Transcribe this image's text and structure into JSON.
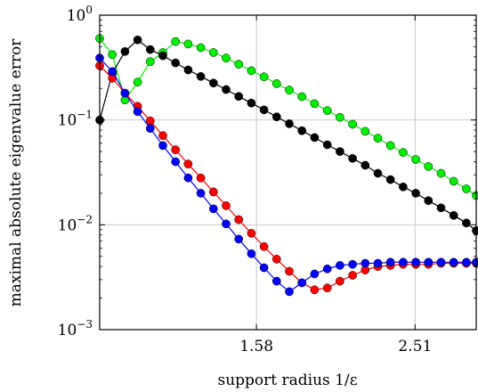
{
  "chart_data": {
    "type": "line",
    "title": "",
    "xlabel": "support radius 1/ε",
    "ylabel": "maximal absolute eigenvalue error",
    "xscale": "log",
    "yscale": "log",
    "xlim": [
      1.0,
      3.0
    ],
    "ylim": [
      0.001,
      1
    ],
    "grid": true,
    "legend": "none",
    "xticks": [
      {
        "value": 1.58,
        "label": "1.58"
      },
      {
        "value": 2.51,
        "label": "2.51"
      }
    ],
    "yticks": [
      {
        "value": 0.001,
        "base": "10",
        "exp": "−3"
      },
      {
        "value": 0.01,
        "base": "10",
        "exp": "−2"
      },
      {
        "value": 0.1,
        "base": "10",
        "exp": "−1"
      },
      {
        "value": 1,
        "base": "10",
        "exp": "0"
      }
    ],
    "x": [
      1.0,
      1.0376,
      1.0766,
      1.117,
      1.159,
      1.2025,
      1.2477,
      1.2946,
      1.3432,
      1.3937,
      1.4461,
      1.5004,
      1.5568,
      1.6153,
      1.676,
      1.739,
      1.8043,
      1.8721,
      1.9425,
      2.0155,
      2.0912,
      2.1698,
      2.2513,
      2.3359,
      2.4237,
      2.5148,
      2.6093,
      2.7073,
      2.809,
      2.9146,
      3.0
    ],
    "series": [
      {
        "color": "#00ee00",
        "values": [
          0.6,
          0.42,
          0.155,
          0.23,
          0.36,
          0.44,
          0.56,
          0.53,
          0.49,
          0.44,
          0.39,
          0.34,
          0.295,
          0.258,
          0.222,
          0.193,
          0.167,
          0.143,
          0.123,
          0.106,
          0.091,
          0.078,
          0.067,
          0.057,
          0.049,
          0.042,
          0.036,
          0.031,
          0.026,
          0.022,
          0.019
        ]
      },
      {
        "color": "#000000",
        "values": [
          0.1,
          0.28,
          0.45,
          0.58,
          0.47,
          0.41,
          0.35,
          0.3,
          0.26,
          0.225,
          0.195,
          0.168,
          0.145,
          0.125,
          0.107,
          0.092,
          0.079,
          0.068,
          0.058,
          0.05,
          0.043,
          0.037,
          0.031,
          0.027,
          0.023,
          0.02,
          0.017,
          0.0145,
          0.0123,
          0.0104,
          0.0088
        ]
      },
      {
        "color": "#ff0000",
        "values": [
          0.33,
          0.25,
          0.18,
          0.135,
          0.098,
          0.071,
          0.052,
          0.038,
          0.028,
          0.0206,
          0.0152,
          0.0112,
          0.0083,
          0.0062,
          0.0047,
          0.0036,
          0.0028,
          0.0024,
          0.0025,
          0.0029,
          0.0033,
          0.0037,
          0.004,
          0.0041,
          0.0042,
          0.0042,
          0.0042,
          0.0043,
          0.0043,
          0.0043,
          0.0043
        ]
      },
      {
        "color": "#0000ff",
        "values": [
          0.39,
          0.29,
          0.18,
          0.12,
          0.083,
          0.057,
          0.04,
          0.028,
          0.02,
          0.0142,
          0.0102,
          0.0073,
          0.0053,
          0.0039,
          0.0029,
          0.0023,
          0.0028,
          0.0034,
          0.0038,
          0.0041,
          0.0042,
          0.0043,
          0.0043,
          0.0044,
          0.0044,
          0.0044,
          0.0044,
          0.0044,
          0.0044,
          0.0044,
          0.0044
        ]
      }
    ]
  }
}
